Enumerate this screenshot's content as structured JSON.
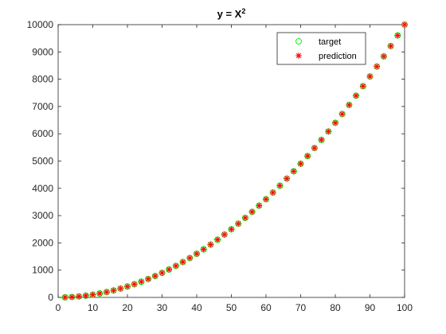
{
  "chart_data": {
    "type": "scatter",
    "title": "y = X",
    "title_superscript": "2",
    "xlabel": "",
    "ylabel": "",
    "xlim": [
      0,
      100
    ],
    "ylim": [
      0,
      10000
    ],
    "x_ticks": [
      0,
      10,
      20,
      30,
      40,
      50,
      60,
      70,
      80,
      90,
      100
    ],
    "y_ticks": [
      0,
      1000,
      2000,
      3000,
      4000,
      5000,
      6000,
      7000,
      8000,
      9000,
      10000
    ],
    "x_tick_labels": [
      "0",
      "10",
      "20",
      "30",
      "40",
      "50",
      "60",
      "70",
      "80",
      "90",
      "100"
    ],
    "y_tick_labels": [
      "0",
      "1000",
      "2000",
      "3000",
      "4000",
      "5000",
      "6000",
      "7000",
      "8000",
      "9000",
      "10000"
    ],
    "grid": false,
    "legend_position": "top-right",
    "x": [
      2,
      4,
      6,
      8,
      10,
      12,
      14,
      16,
      18,
      20,
      22,
      24,
      26,
      28,
      30,
      32,
      34,
      36,
      38,
      40,
      42,
      44,
      46,
      48,
      50,
      52,
      54,
      56,
      58,
      60,
      62,
      64,
      66,
      68,
      70,
      72,
      74,
      76,
      78,
      80,
      82,
      84,
      86,
      88,
      90,
      92,
      94,
      96,
      98,
      100
    ],
    "series": [
      {
        "name": "target",
        "marker": "circle",
        "color": "#00ff00",
        "values": [
          4,
          16,
          36,
          64,
          100,
          144,
          196,
          256,
          324,
          400,
          484,
          576,
          676,
          784,
          900,
          1024,
          1156,
          1296,
          1444,
          1600,
          1764,
          1936,
          2116,
          2304,
          2500,
          2704,
          2916,
          3136,
          3364,
          3600,
          3844,
          4096,
          4356,
          4624,
          4900,
          5184,
          5476,
          5776,
          6084,
          6400,
          6724,
          7056,
          7396,
          7744,
          8100,
          8464,
          8836,
          9216,
          9604,
          10000
        ]
      },
      {
        "name": "prediction",
        "marker": "asterisk",
        "color": "#ff0000",
        "values": [
          4,
          16,
          36,
          64,
          100,
          144,
          196,
          256,
          324,
          400,
          484,
          576,
          676,
          784,
          900,
          1024,
          1156,
          1296,
          1444,
          1600,
          1764,
          1936,
          2116,
          2304,
          2500,
          2704,
          2916,
          3136,
          3364,
          3600,
          3844,
          4096,
          4356,
          4624,
          4900,
          5184,
          5476,
          5776,
          6084,
          6400,
          6724,
          7056,
          7396,
          7744,
          8100,
          8464,
          8836,
          9216,
          9604,
          10000
        ]
      }
    ]
  }
}
